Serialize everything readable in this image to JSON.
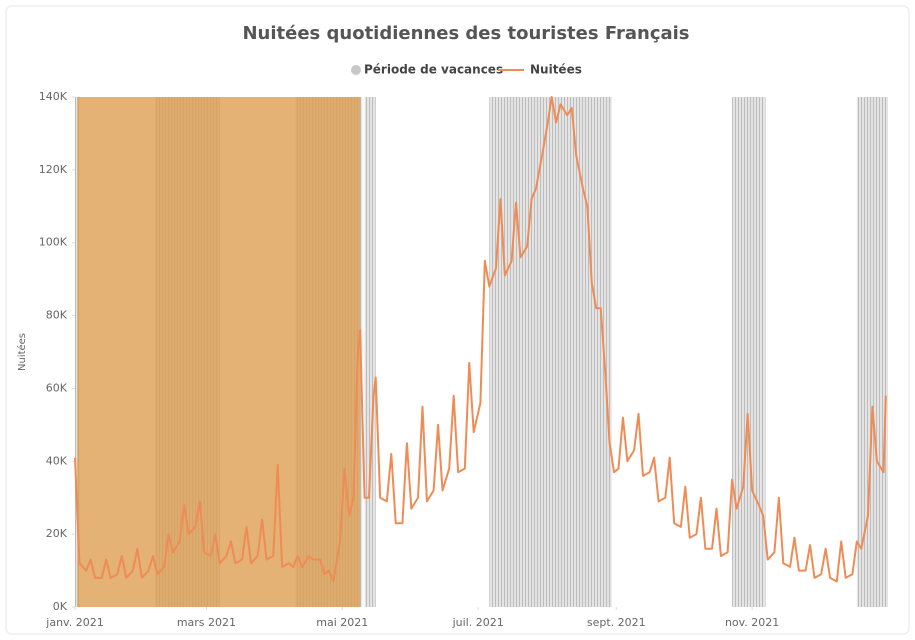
{
  "chart_data": {
    "type": "line",
    "title": "Nuitées quotidiennes des touristes Français",
    "y_label": "Nuitées",
    "xlim": [
      0,
      365
    ],
    "xticks": [
      {
        "value": 0,
        "label": "janv. 2021"
      },
      {
        "value": 59,
        "label": "mars 2021"
      },
      {
        "value": 120,
        "label": "mai 2021"
      },
      {
        "value": 181,
        "label": "juil. 2021"
      },
      {
        "value": 243,
        "label": "sept. 2021"
      },
      {
        "value": 304,
        "label": "nov. 2021"
      }
    ],
    "ylim": [
      0,
      140000
    ],
    "yticks": [
      {
        "value": 0,
        "label": "0K"
      },
      {
        "value": 20000,
        "label": "20K"
      },
      {
        "value": 40000,
        "label": "40K"
      },
      {
        "value": 60000,
        "label": "60K"
      },
      {
        "value": 80000,
        "label": "80K"
      },
      {
        "value": 100000,
        "label": "100K"
      },
      {
        "value": 120000,
        "label": "120K"
      },
      {
        "value": 140000,
        "label": "140K"
      }
    ],
    "periods": {
      "name": "Période de vacances",
      "color": "#c8c8c8",
      "ranges": [
        [
          0,
          2
        ],
        [
          36,
          65
        ],
        [
          99,
          129
        ],
        [
          130,
          135
        ],
        [
          186,
          241
        ],
        [
          295,
          310
        ],
        [
          351,
          365
        ]
      ]
    },
    "highlight": {
      "color": "#dc9c4e",
      "ranges": [
        [
          1,
          128
        ]
      ]
    },
    "series": [
      {
        "name": "Nuitées",
        "color": "#ef8c55",
        "x": [
          0,
          2,
          5,
          7,
          9,
          12,
          14,
          16,
          19,
          21,
          23,
          26,
          28,
          30,
          33,
          35,
          37,
          40,
          42,
          44,
          47,
          49,
          51,
          54,
          56,
          58,
          61,
          63,
          65,
          68,
          70,
          72,
          75,
          77,
          79,
          82,
          84,
          86,
          89,
          91,
          93,
          96,
          98,
          100,
          102,
          105,
          107,
          110,
          112,
          114,
          116,
          119,
          121,
          123,
          125,
          127,
          128,
          130,
          132,
          134,
          135,
          137,
          140,
          142,
          144,
          147,
          149,
          151,
          154,
          156,
          158,
          161,
          163,
          165,
          168,
          170,
          172,
          175,
          177,
          179,
          182,
          184,
          186,
          189,
          191,
          193,
          196,
          198,
          200,
          203,
          205,
          207,
          210,
          212,
          214,
          216,
          218,
          221,
          223,
          225,
          228,
          230,
          232,
          234,
          236,
          238,
          240,
          242,
          244,
          246,
          248,
          251,
          253,
          255,
          258,
          260,
          262,
          265,
          267,
          269,
          272,
          274,
          276,
          279,
          281,
          283,
          286,
          288,
          290,
          293,
          295,
          297,
          300,
          302,
          304,
          307,
          309,
          311,
          314,
          316,
          318,
          321,
          323,
          325,
          328,
          330,
          332,
          335,
          337,
          339,
          342,
          344,
          346,
          349,
          351,
          353,
          356,
          358,
          360,
          363,
          364
        ],
        "values": [
          41000,
          12000,
          10000,
          13000,
          8000,
          8000,
          13000,
          8000,
          9000,
          14000,
          8000,
          10000,
          16000,
          8000,
          10000,
          14000,
          9000,
          11000,
          20000,
          15000,
          18000,
          28000,
          20000,
          22000,
          29000,
          15000,
          14000,
          20000,
          12000,
          14000,
          18000,
          12000,
          13000,
          22000,
          12000,
          14000,
          24000,
          13000,
          14000,
          39000,
          11000,
          12000,
          11000,
          14000,
          11000,
          14000,
          13000,
          13000,
          9000,
          10000,
          7000,
          18000,
          38000,
          25000,
          30000,
          70000,
          76000,
          30000,
          30000,
          58000,
          63000,
          30000,
          29000,
          42000,
          23000,
          23000,
          45000,
          27000,
          30000,
          55000,
          29000,
          32000,
          50000,
          32000,
          38000,
          58000,
          37000,
          38000,
          67000,
          48000,
          56000,
          95000,
          88000,
          93000,
          112000,
          91000,
          95000,
          111000,
          96000,
          99000,
          112000,
          115000,
          125000,
          132000,
          140000,
          133000,
          138000,
          135000,
          137000,
          124000,
          115000,
          110000,
          89000,
          82000,
          82000,
          65000,
          45000,
          37000,
          38000,
          52000,
          40000,
          43000,
          53000,
          36000,
          37000,
          41000,
          29000,
          30000,
          41000,
          23000,
          22000,
          33000,
          19000,
          20000,
          30000,
          16000,
          16000,
          27000,
          14000,
          15000,
          35000,
          27000,
          33000,
          53000,
          32000,
          28000,
          25000,
          13000,
          15000,
          30000,
          12000,
          11000,
          19000,
          10000,
          10000,
          17000,
          8000,
          9000,
          16000,
          8000,
          7000,
          18000,
          8000,
          9000,
          18000,
          16000,
          25000,
          55000,
          40000,
          37000,
          58000
        ]
      }
    ]
  }
}
